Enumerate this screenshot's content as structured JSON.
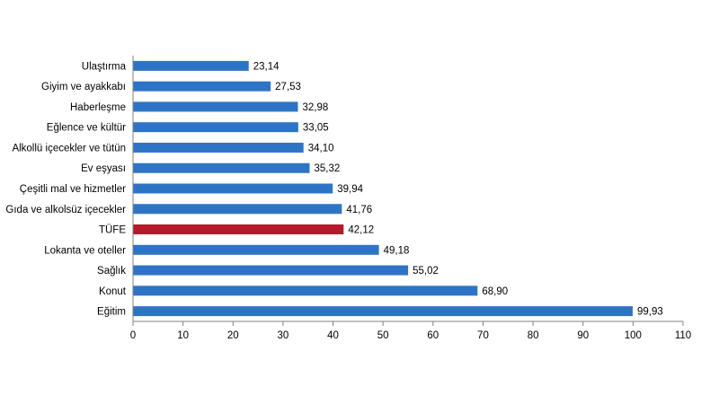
{
  "chart_data": {
    "type": "bar",
    "orientation": "horizontal",
    "categories": [
      "Ulaştırma",
      "Giyim ve ayakkabı",
      "Haberleşme",
      "Eğlence ve kültür",
      "Alkollü içecekler ve tütün",
      "Ev eşyası",
      "Çeşitli mal ve hizmetler",
      "Gıda ve alkolsüz içecekler",
      "TÜFE",
      "Lokanta ve oteller",
      "Sağlık",
      "Konut",
      "Eğitim"
    ],
    "values": [
      23.14,
      27.53,
      32.98,
      33.05,
      34.1,
      35.32,
      39.94,
      41.76,
      42.12,
      49.18,
      55.02,
      68.9,
      99.93
    ],
    "value_labels": [
      "23,14",
      "27,53",
      "32,98",
      "33,05",
      "34,10",
      "35,32",
      "39,94",
      "41,76",
      "42,12",
      "49,18",
      "55,02",
      "68,90",
      "99,93"
    ],
    "highlight_category": "TÜFE",
    "xlim": [
      0,
      110
    ],
    "xticks": [
      "0",
      "10",
      "20",
      "30",
      "40",
      "50",
      "60",
      "70",
      "80",
      "90",
      "100",
      "110"
    ],
    "grid": false,
    "colors": {
      "bar": "#2E74C6",
      "highlight": "#B5192B"
    }
  }
}
